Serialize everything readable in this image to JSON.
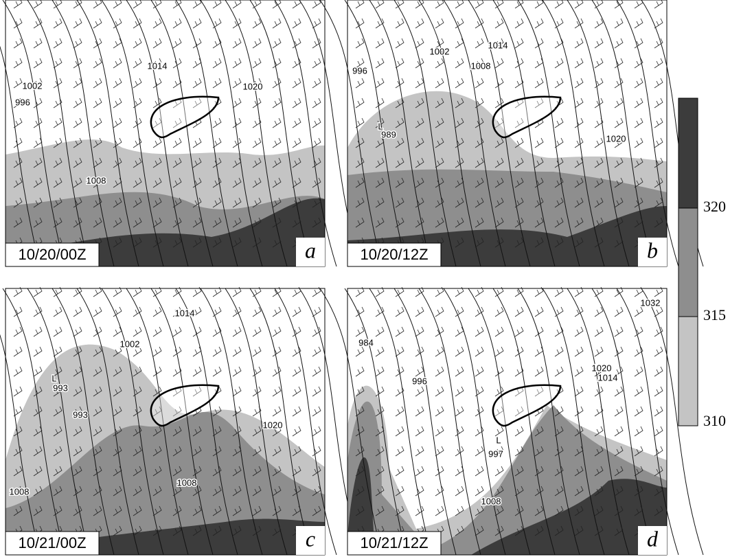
{
  "panels": [
    {
      "time": "10/20/00Z",
      "letter": "a",
      "labels": [
        "1014",
        "1002",
        "1020",
        "996",
        "1008"
      ]
    },
    {
      "time": "10/20/12Z",
      "letter": "b",
      "labels": [
        "1002",
        "1014",
        "1008",
        "996",
        "L",
        "989",
        "1020"
      ]
    },
    {
      "time": "10/21/00Z",
      "letter": "c",
      "labels": [
        "1014",
        "1002",
        "L",
        "993",
        "993",
        "1020",
        "1008",
        "1008"
      ]
    },
    {
      "time": "10/21/12Z",
      "letter": "d",
      "labels": [
        "1032",
        "984",
        "1014",
        "1020",
        "996",
        "L",
        "997",
        "1008"
      ]
    }
  ],
  "colorbar": {
    "ticks": [
      310,
      315,
      320
    ],
    "colors": [
      "#c4c4c4",
      "#8e8e8e",
      "#3c3c3c"
    ]
  }
}
